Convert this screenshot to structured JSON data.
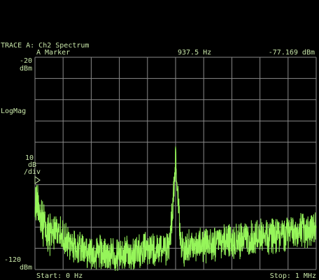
{
  "header": {
    "trace_title": "TRACE A: Ch2 Spectrum",
    "marker_label": "A Marker",
    "marker_freq": "937.5 Hz",
    "marker_value": "-77.169 dBm"
  },
  "scale": {
    "top_value": "-20",
    "top_unit": "dBm",
    "mode": "LogMag",
    "div_value": "10",
    "div_unit": "dB",
    "div_per": "/div",
    "bottom_value": "-120",
    "bottom_unit": "dBm"
  },
  "footer": {
    "start": "Start: 0 Hz",
    "stop": "Stop: 1 MHz"
  },
  "colors": {
    "trace": "#96f55a",
    "grid": "#8a8a8a",
    "text": "#c8e6a8",
    "background": "#000000"
  },
  "chart_data": {
    "type": "line",
    "title": "Ch2 Spectrum",
    "x_range_hz": [
      0,
      1000000
    ],
    "y_range_dbm": [
      -120,
      -20
    ],
    "y_scale": "log magnitude, 10 dB/div",
    "grid": true,
    "marker": {
      "x_hz": 937.5,
      "y_dbm": -77.169
    },
    "series": [
      {
        "x": [
          0,
          10000,
          20000,
          40000,
          80000,
          120000,
          200000,
          300000,
          400000,
          480000,
          500000,
          520000,
          600000,
          700000,
          800000,
          900000,
          1000000
        ],
        "y": [
          -80,
          -75,
          -85,
          -92,
          -95,
          -100,
          -104,
          -106,
          -103,
          -101,
          -62,
          -103,
          -101,
          -99,
          -97,
          -95,
          -94
        ]
      }
    ]
  }
}
